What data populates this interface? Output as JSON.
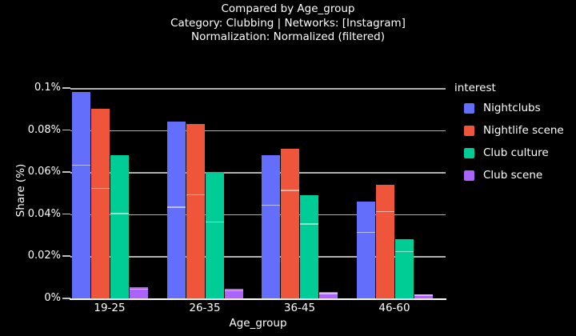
{
  "header": {
    "title": "Compared by Age_group",
    "subtitle_category": "Category: Clubbing | Networks: [Instagram]",
    "subtitle_normalization": "Normalization: Normalized (filtered)"
  },
  "colors": {
    "background": "#000000",
    "text": "#ffffff",
    "grid": "#b0b0b0",
    "axis": "#ffffff"
  },
  "chart_data": {
    "type": "bar",
    "title": "Compared by Age_group",
    "subtitle": "Category: Clubbing | Networks: [Instagram] — Normalization: Normalized (filtered)",
    "xlabel": "Age_group",
    "ylabel": "Share (%)",
    "categories": [
      "19-25",
      "26-35",
      "36-45",
      "46-60"
    ],
    "series": [
      {
        "name": "Nightclubs",
        "color": "#636EFA",
        "values": [
          0.098,
          0.084,
          0.068,
          0.046
        ],
        "segment_line_values": [
          0.063,
          0.043,
          0.044,
          0.031
        ]
      },
      {
        "name": "Nightlife scene",
        "color": "#EF553B",
        "values": [
          0.09,
          0.083,
          0.071,
          0.054
        ],
        "segment_line_values": [
          0.052,
          0.049,
          0.051,
          0.041
        ]
      },
      {
        "name": "Club culture",
        "color": "#00CC96",
        "values": [
          0.068,
          0.06,
          0.049,
          0.028
        ],
        "segment_line_values": [
          0.04,
          0.036,
          0.035,
          0.022
        ]
      },
      {
        "name": "Club scene",
        "color": "#AB63FA",
        "values": [
          0.0055,
          0.0045,
          0.003,
          0.002
        ],
        "segment_line_values": [
          0.004,
          0.0033,
          0.002,
          0.0013
        ]
      }
    ],
    "ylim": [
      0,
      0.1
    ],
    "yticks": [
      {
        "value": 0,
        "label": "0%"
      },
      {
        "value": 0.02,
        "label": "0.02%"
      },
      {
        "value": 0.04,
        "label": "0.04%"
      },
      {
        "value": 0.06,
        "label": "0.06%"
      },
      {
        "value": 0.08,
        "label": "0.08%"
      },
      {
        "value": 0.1,
        "label": "0.1%"
      }
    ],
    "grid": true,
    "legend_title": "interest",
    "legend_position": "right"
  }
}
